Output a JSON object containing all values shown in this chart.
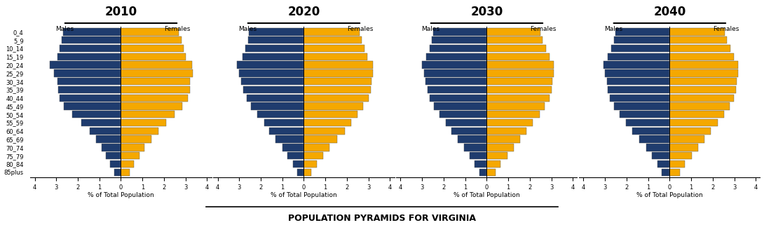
{
  "years": [
    "2010",
    "2020",
    "2030",
    "2040"
  ],
  "age_groups": [
    "85plus",
    "80_84",
    "75_79",
    "70_74",
    "65_69",
    "60_64",
    "55_59",
    "50_54",
    "45_49",
    "40_44",
    "35_39",
    "30_34",
    "25_29",
    "20_24",
    "15_19",
    "10_14",
    "5_9",
    "0_4"
  ],
  "males_2010": [
    0.3,
    0.5,
    0.7,
    0.9,
    1.15,
    1.45,
    1.85,
    2.25,
    2.65,
    2.85,
    2.9,
    2.95,
    3.1,
    3.3,
    2.95,
    2.85,
    2.75,
    2.7
  ],
  "females_2010": [
    0.4,
    0.6,
    0.85,
    1.1,
    1.4,
    1.75,
    2.1,
    2.5,
    2.85,
    3.1,
    3.2,
    3.2,
    3.35,
    3.3,
    3.0,
    2.9,
    2.8,
    2.7
  ],
  "males_2020": [
    0.3,
    0.5,
    0.75,
    1.0,
    1.3,
    1.6,
    1.85,
    2.15,
    2.45,
    2.65,
    2.8,
    2.9,
    3.0,
    3.1,
    2.85,
    2.7,
    2.6,
    2.55
  ],
  "females_2020": [
    0.35,
    0.6,
    0.9,
    1.2,
    1.55,
    1.9,
    2.2,
    2.5,
    2.75,
    3.0,
    3.1,
    3.15,
    3.2,
    3.2,
    2.95,
    2.8,
    2.7,
    2.6
  ],
  "males_2030": [
    0.35,
    0.55,
    0.8,
    1.05,
    1.35,
    1.65,
    1.9,
    2.2,
    2.45,
    2.65,
    2.75,
    2.85,
    2.9,
    3.0,
    2.8,
    2.65,
    2.55,
    2.5
  ],
  "females_2030": [
    0.4,
    0.65,
    0.95,
    1.25,
    1.55,
    1.85,
    2.15,
    2.45,
    2.7,
    2.9,
    3.0,
    3.05,
    3.1,
    3.1,
    2.9,
    2.75,
    2.6,
    2.5
  ],
  "males_2040": [
    0.38,
    0.58,
    0.82,
    1.1,
    1.4,
    1.72,
    2.02,
    2.32,
    2.58,
    2.78,
    2.88,
    2.92,
    3.02,
    3.08,
    2.88,
    2.72,
    2.58,
    2.52
  ],
  "females_2040": [
    0.48,
    0.72,
    1.02,
    1.32,
    1.62,
    1.92,
    2.22,
    2.52,
    2.78,
    2.98,
    3.08,
    3.12,
    3.18,
    3.18,
    2.98,
    2.82,
    2.66,
    2.56
  ],
  "male_color": "#1F3C6E",
  "female_color": "#F5A800",
  "edge_color": "#555555",
  "title": "POPULATION PYRAMIDS FOR VIRGINIA",
  "xlabel": "% of Total Population",
  "xlim": 4.2,
  "background_color": "#FFFFFF",
  "year_title_fontsize": 12,
  "label_fontsize": 6.5,
  "tick_fontsize": 6,
  "main_title_fontsize": 9
}
